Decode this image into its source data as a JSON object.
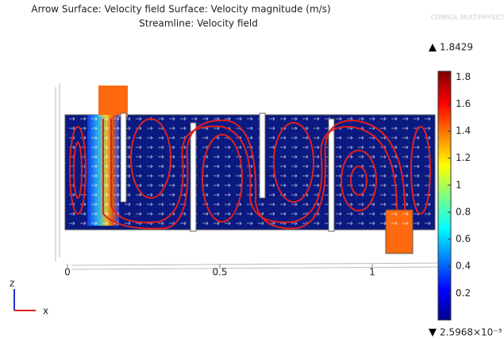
{
  "chart_data": {
    "type": "surface",
    "title": "Arrow Surface: Velocity field  Surface: Velocity magnitude (m/s)",
    "subtitle": "Streamline: Velocity field",
    "logo": "COMSOL MULTIPHYSICS",
    "x_axis_label": "x",
    "z_axis_label": "z",
    "xlim": [
      -0.02,
      1.2
    ],
    "xticks": [
      0,
      0.5,
      1
    ],
    "clim": [
      0.0025968,
      1.8429
    ],
    "cticks": [
      0.2,
      0.4,
      0.6,
      0.8,
      1,
      1.2,
      1.4,
      1.6,
      1.8
    ],
    "max": 1.8429,
    "min": {
      "value": 0.0025968,
      "label": "2.5968×10⁻³"
    }
  }
}
